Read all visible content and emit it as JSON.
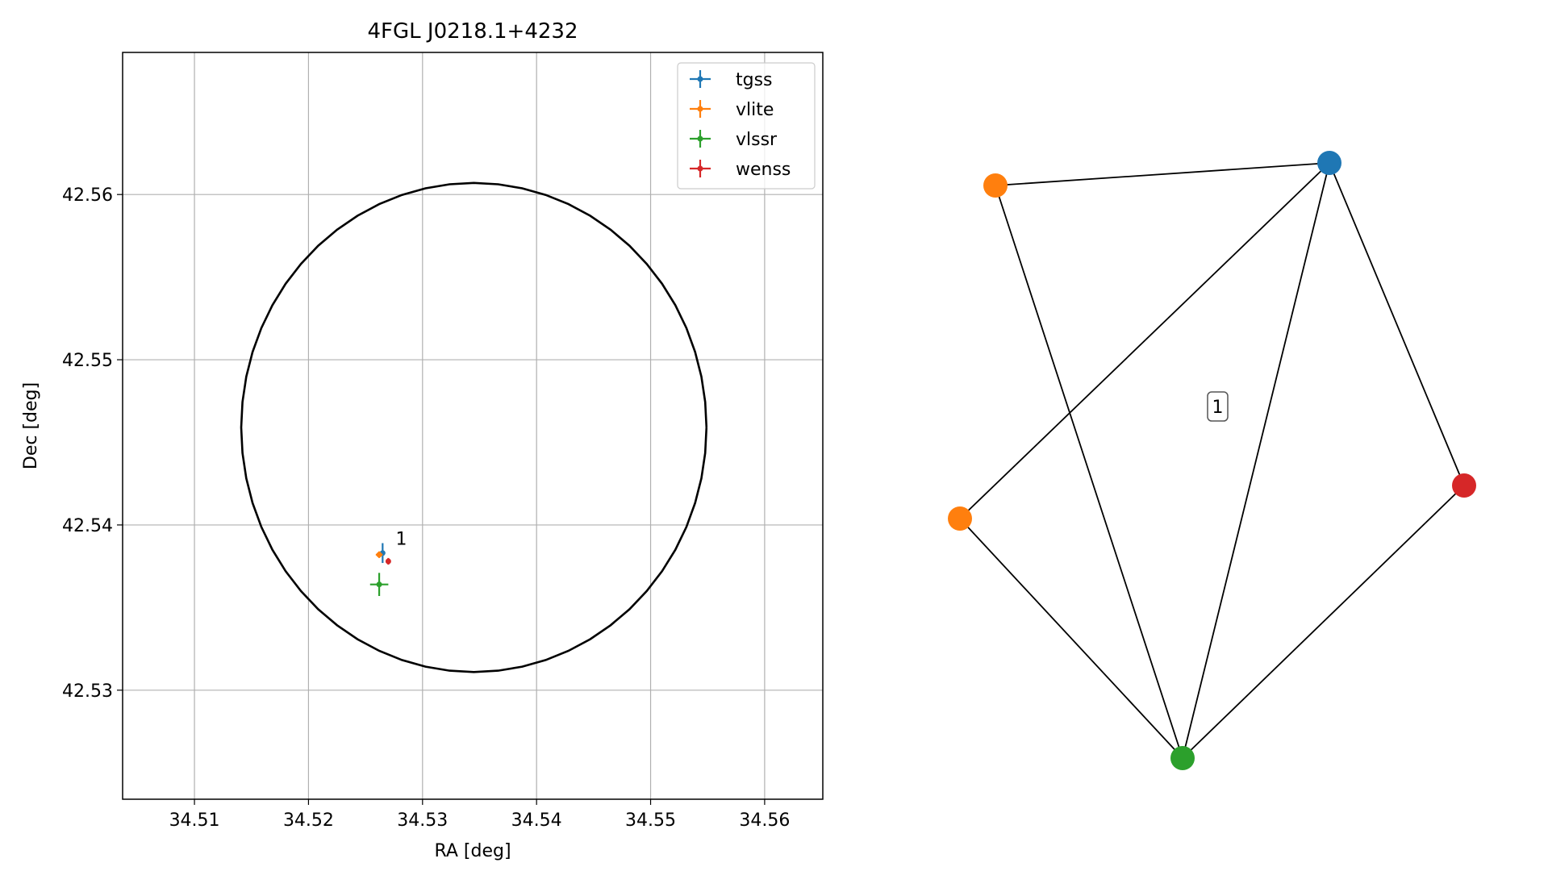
{
  "chart_data": [
    {
      "type": "scatter",
      "title": "4FGL J0218.1+4232",
      "xlabel": "RA [deg]",
      "ylabel": "Dec [deg]",
      "xlim": [
        34.5037,
        34.5651
      ],
      "ylim": [
        42.5234,
        42.5686
      ],
      "xticks": [
        34.51,
        34.52,
        34.53,
        34.54,
        34.55,
        34.56
      ],
      "xtick_labels": [
        "34.51",
        "34.52",
        "34.53",
        "34.54",
        "34.55",
        "34.56"
      ],
      "yticks": [
        42.53,
        42.54,
        42.55,
        42.56
      ],
      "ytick_labels": [
        "42.53",
        "42.54",
        "42.55",
        "42.56"
      ],
      "grid": true,
      "legend_position": "top-right",
      "series": [
        {
          "name": "tgss",
          "color": "#1f77b4",
          "points": [
            {
              "x": 34.5265,
              "y": 42.5383,
              "xerr": 0.0002,
              "yerr": 0.0006
            }
          ]
        },
        {
          "name": "vlite",
          "color": "#ff7f0e",
          "points": [
            {
              "x": 34.5262,
              "y": 42.5382,
              "xerr": 0.0003,
              "yerr": 0.0002
            }
          ]
        },
        {
          "name": "vlssr",
          "color": "#2ca02c",
          "points": [
            {
              "x": 34.5262,
              "y": 42.5364,
              "xerr": 0.0008,
              "yerr": 0.0007
            }
          ]
        },
        {
          "name": "wenss",
          "color": "#d62728",
          "points": [
            {
              "x": 34.527,
              "y": 42.5378,
              "xerr": 0.0002,
              "yerr": 0.0002
            }
          ]
        }
      ],
      "ellipse": {
        "center_x": 34.5345,
        "center_y": 42.5459,
        "semi_x": 0.0204,
        "semi_y": 0.0148,
        "color": "#000000"
      },
      "annotations": [
        {
          "text": "1",
          "x": 34.5275,
          "y": 42.5388
        }
      ]
    },
    {
      "type": "network",
      "nodes": [
        {
          "id": "n-blue",
          "color": "#1f77b4"
        },
        {
          "id": "n-orange-1",
          "color": "#ff7f0e"
        },
        {
          "id": "n-orange-2",
          "color": "#ff7f0e"
        },
        {
          "id": "n-red",
          "color": "#d62728"
        },
        {
          "id": "n-green",
          "color": "#2ca02c"
        }
      ],
      "edges": [
        [
          "n-orange-1",
          "n-blue"
        ],
        [
          "n-orange-1",
          "n-green"
        ],
        [
          "n-orange-2",
          "n-blue"
        ],
        [
          "n-orange-2",
          "n-green"
        ],
        [
          "n-blue",
          "n-green"
        ],
        [
          "n-blue",
          "n-red"
        ],
        [
          "n-red",
          "n-green"
        ]
      ],
      "labels": [
        {
          "text": "1"
        }
      ]
    }
  ]
}
